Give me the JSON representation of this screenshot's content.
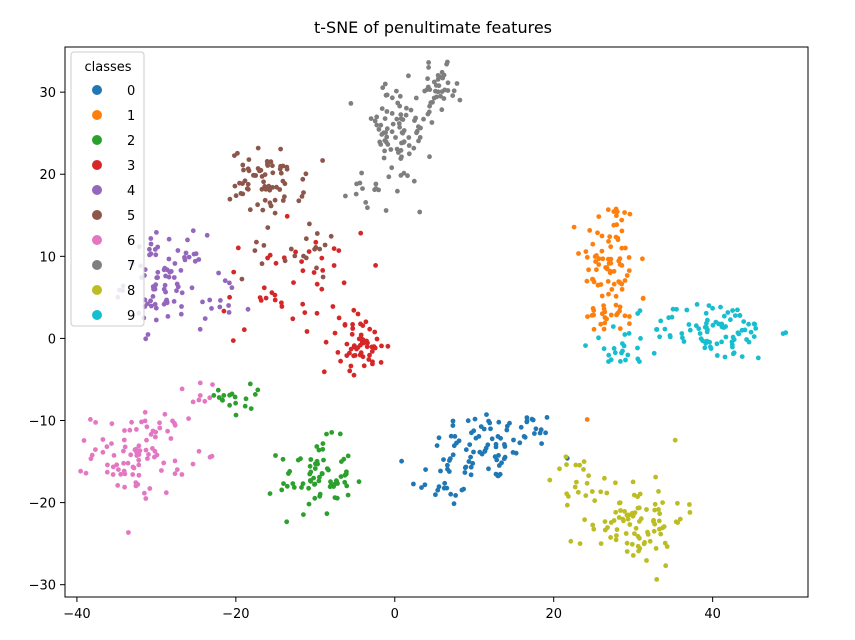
{
  "chart_data": {
    "type": "scatter",
    "title": "t-SNE of penultimate features",
    "xlabel": "",
    "ylabel": "",
    "xlim": [
      -41.5,
      52
    ],
    "ylim": [
      -31.5,
      35.5
    ],
    "xticks": [
      -40,
      -20,
      0,
      20,
      40
    ],
    "yticks": [
      -30,
      -20,
      -10,
      0,
      10,
      20,
      30
    ],
    "grid": false,
    "legend": {
      "title": "classes",
      "placement": "top-left"
    },
    "series": [
      {
        "name": "0",
        "color": "#1f77b4",
        "clusters": [
          {
            "cx": 12,
            "cy": -13,
            "sx": 3.5,
            "sy": 2.2,
            "n": 70
          },
          {
            "cx": 6,
            "cy": -17,
            "sx": 2.0,
            "sy": 1.8,
            "n": 25
          },
          {
            "cx": 18,
            "cy": -11,
            "sx": 1.5,
            "sy": 1.5,
            "n": 10
          }
        ]
      },
      {
        "name": "1",
        "color": "#ff7f0e",
        "clusters": [
          {
            "cx": 27,
            "cy": 9,
            "sx": 1.8,
            "sy": 4.5,
            "n": 85
          },
          {
            "cx": 28,
            "cy": 3,
            "sx": 2.0,
            "sy": 1.5,
            "n": 15
          }
        ]
      },
      {
        "name": "2",
        "color": "#2ca02c",
        "clusters": [
          {
            "cx": -10,
            "cy": -17,
            "sx": 2.3,
            "sy": 2.3,
            "n": 70
          },
          {
            "cx": -19,
            "cy": -7,
            "sx": 1.5,
            "sy": 1.5,
            "n": 18
          }
        ]
      },
      {
        "name": "3",
        "color": "#d62728",
        "clusters": [
          {
            "cx": -4,
            "cy": -1,
            "sx": 1.5,
            "sy": 1.5,
            "n": 50
          },
          {
            "cx": -13,
            "cy": 6,
            "sx": 4.5,
            "sy": 3.5,
            "n": 50
          }
        ]
      },
      {
        "name": "4",
        "color": "#9467bd",
        "clusters": [
          {
            "cx": -29,
            "cy": 7,
            "sx": 2.5,
            "sy": 2.8,
            "n": 85
          },
          {
            "cx": -22,
            "cy": 4,
            "sx": 2.0,
            "sy": 2.0,
            "n": 12
          }
        ]
      },
      {
        "name": "5",
        "color": "#8c564b",
        "clusters": [
          {
            "cx": -16,
            "cy": 19,
            "sx": 2.3,
            "sy": 2.0,
            "n": 70
          },
          {
            "cx": -13,
            "cy": 11,
            "sx": 3.0,
            "sy": 2.0,
            "n": 20
          }
        ]
      },
      {
        "name": "6",
        "color": "#e377c2",
        "clusters": [
          {
            "cx": -32,
            "cy": -14,
            "sx": 3.0,
            "sy": 2.5,
            "n": 90
          },
          {
            "cx": -26,
            "cy": -8,
            "sx": 1.5,
            "sy": 1.5,
            "n": 10
          }
        ]
      },
      {
        "name": "7",
        "color": "#7f7f7f",
        "clusters": [
          {
            "cx": 0,
            "cy": 25,
            "sx": 2.3,
            "sy": 3.2,
            "n": 80
          },
          {
            "cx": 5.5,
            "cy": 30,
            "sx": 1.2,
            "sy": 1.5,
            "n": 40
          },
          {
            "cx": -3,
            "cy": 18,
            "sx": 1.5,
            "sy": 1.5,
            "n": 12
          }
        ]
      },
      {
        "name": "8",
        "color": "#bcbd22",
        "clusters": [
          {
            "cx": 30,
            "cy": -22,
            "sx": 3.2,
            "sy": 2.8,
            "n": 95
          },
          {
            "cx": 23,
            "cy": -17,
            "sx": 1.8,
            "sy": 1.5,
            "n": 15
          }
        ]
      },
      {
        "name": "9",
        "color": "#17becf",
        "clusters": [
          {
            "cx": 40,
            "cy": 1,
            "sx": 4.0,
            "sy": 1.8,
            "n": 90
          },
          {
            "cx": 28,
            "cy": -2,
            "sx": 2.0,
            "sy": 1.0,
            "n": 18
          }
        ]
      }
    ]
  }
}
